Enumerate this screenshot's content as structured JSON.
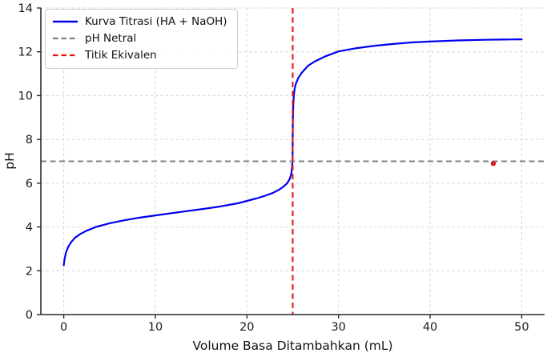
{
  "figure": {
    "background": "#ffffff",
    "axis_color": "#2a2a2a",
    "grid_color": "#d7d7d7",
    "tick_label_color": "#1a1a1a"
  },
  "chart_data": {
    "type": "line",
    "title": "",
    "xlabel": "Volume Basa Ditambahkan (mL)",
    "ylabel": "pH",
    "xlim": [
      -2.5,
      52.5
    ],
    "ylim": [
      0,
      14
    ],
    "xticks": [
      0,
      10,
      20,
      30,
      40,
      50
    ],
    "yticks": [
      0,
      2,
      4,
      6,
      8,
      10,
      12,
      14
    ],
    "grid": true,
    "legend_position": "upper-left",
    "series": [
      {
        "name": "Kurva Titrasi (HA + NaOH)",
        "kind": "line",
        "color": "#0000ee",
        "dash": "solid",
        "width": 2.2,
        "in_legend": true,
        "points": [
          [
            0,
            2.25
          ],
          [
            0.1,
            2.55
          ],
          [
            0.25,
            2.85
          ],
          [
            0.5,
            3.1
          ],
          [
            0.8,
            3.3
          ],
          [
            1.2,
            3.5
          ],
          [
            1.8,
            3.68
          ],
          [
            2.5,
            3.83
          ],
          [
            3.5,
            4.0
          ],
          [
            5,
            4.17
          ],
          [
            6.5,
            4.3
          ],
          [
            8,
            4.41
          ],
          [
            10,
            4.53
          ],
          [
            12.5,
            4.67
          ],
          [
            15,
            4.81
          ],
          [
            17,
            4.93
          ],
          [
            19,
            5.08
          ],
          [
            20,
            5.19
          ],
          [
            21,
            5.3
          ],
          [
            22,
            5.43
          ],
          [
            22.8,
            5.55
          ],
          [
            23.5,
            5.7
          ],
          [
            24,
            5.85
          ],
          [
            24.4,
            6.0
          ],
          [
            24.7,
            6.22
          ],
          [
            24.85,
            6.45
          ],
          [
            24.93,
            6.7
          ],
          [
            24.98,
            7.1
          ],
          [
            25.0,
            8.2
          ],
          [
            25.02,
            9.0
          ],
          [
            25.06,
            9.6
          ],
          [
            25.12,
            10.0
          ],
          [
            25.2,
            10.3
          ],
          [
            25.35,
            10.55
          ],
          [
            25.6,
            10.8
          ],
          [
            26,
            11.05
          ],
          [
            26.7,
            11.37
          ],
          [
            27.5,
            11.58
          ],
          [
            28.5,
            11.78
          ],
          [
            30,
            12.02
          ],
          [
            32,
            12.17
          ],
          [
            34,
            12.28
          ],
          [
            36,
            12.36
          ],
          [
            38,
            12.43
          ],
          [
            40,
            12.47
          ],
          [
            43,
            12.52
          ],
          [
            46,
            12.55
          ],
          [
            48,
            12.56
          ],
          [
            50,
            12.57
          ]
        ]
      },
      {
        "name": "pH Netral",
        "kind": "hline",
        "y": 7,
        "color": "#808080",
        "dash": "dashed",
        "width": 2,
        "in_legend": true
      },
      {
        "name": "Titik Ekivalen",
        "kind": "vline",
        "x": 25,
        "color": "#e81313",
        "dash": "dashed",
        "width": 2,
        "in_legend": true
      },
      {
        "name": "titik-data-merah",
        "kind": "scatter",
        "color": "#d81f1f",
        "size": 3.2,
        "in_legend": false,
        "points": [
          [
            46.9,
            6.9
          ]
        ]
      }
    ]
  }
}
